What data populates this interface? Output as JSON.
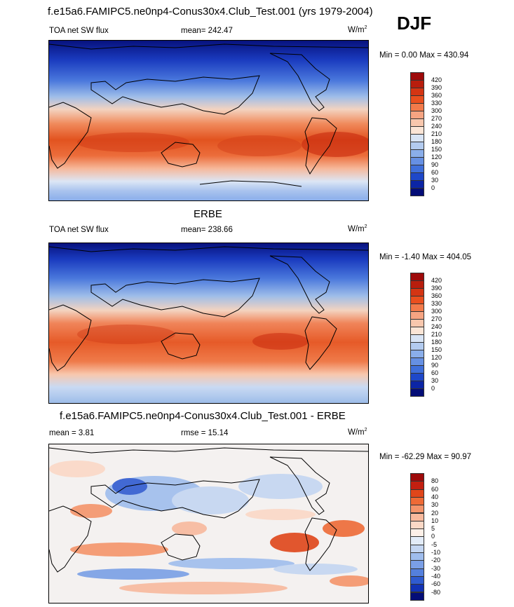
{
  "header": {
    "title": "f.e15a6.FAMIPC5.ne0np4-Conus30x4.Club_Test.001 (yrs 1979-2004)",
    "season": "DJF"
  },
  "panels": [
    {
      "variable": "TOA net SW flux",
      "stat": "mean= 242.47",
      "units": "W/m",
      "units_sup": "2",
      "minmax": "Min =   0.00 Max = 430.94"
    },
    {
      "title": "ERBE",
      "variable": "TOA net SW flux",
      "stat": "mean= 238.66",
      "units": "W/m",
      "units_sup": "2",
      "minmax": "Min =  -1.40 Max = 404.05"
    },
    {
      "title": "f.e15a6.FAMIPC5.ne0np4-Conus30x4.Club_Test.001 - ERBE",
      "stat_mean": "mean =   3.81",
      "stat_rmse": "rmse =  15.14",
      "units": "W/m",
      "units_sup": "2",
      "minmax": "Min = -62.29 Max =  90.97"
    }
  ],
  "colorbars": {
    "flux": {
      "labels": [
        "420",
        "390",
        "360",
        "330",
        "300",
        "270",
        "240",
        "210",
        "180",
        "150",
        "120",
        "90",
        "60",
        "30",
        "0"
      ],
      "colors": [
        "#9e0a0a",
        "#b81d0d",
        "#d43513",
        "#e94f1e",
        "#f27a4a",
        "#f6a482",
        "#f8c7ad",
        "#fbe5d6",
        "#d8e4f5",
        "#b3cbef",
        "#8aaeea",
        "#6690e3",
        "#3f6fda",
        "#1e48c9",
        "#0c25a5",
        "#040d77"
      ]
    },
    "diff": {
      "labels": [
        "80",
        "60",
        "40",
        "30",
        "20",
        "10",
        "5",
        "0",
        "-5",
        "-10",
        "-20",
        "-30",
        "-40",
        "-60",
        "-80"
      ],
      "colors": [
        "#9e0a0a",
        "#c21f10",
        "#e0461a",
        "#ee6a36",
        "#f4946b",
        "#f8b99d",
        "#fbd8c6",
        "#fdf0e8",
        "#e3ecf8",
        "#c4d6f2",
        "#9fbded",
        "#7a9fe6",
        "#5480dd",
        "#2f5bd0",
        "#1232b4",
        "#040d77"
      ]
    }
  }
}
